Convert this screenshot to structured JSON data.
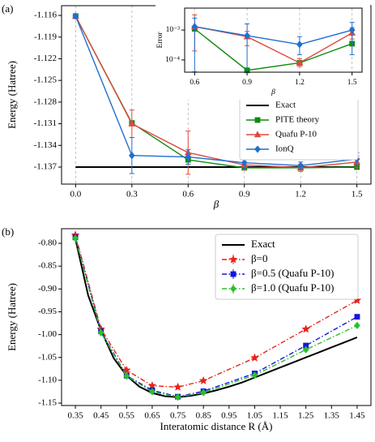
{
  "chart_data": [
    {
      "type": "line",
      "panel_label": "(a)",
      "xlabel": "β",
      "ylabel": "Energy (Hatree)",
      "x": [
        0,
        0.3,
        0.6,
        0.9,
        1.2,
        1.5
      ],
      "xlim": [
        -0.075,
        1.575
      ],
      "ylim": [
        -1.13936,
        -1.11465
      ],
      "xticks": [
        {
          "value": 0,
          "label": "0.0"
        },
        0.3,
        0.6,
        0.9,
        1.2,
        1.5
      ],
      "yticks": [
        -1.116,
        -1.119,
        -1.122,
        -1.125,
        -1.128,
        -1.131,
        -1.134,
        -1.137
      ],
      "grid": "x",
      "legend": "lower right",
      "series": [
        {
          "name": "Exact",
          "color": "#000000",
          "marker": "none",
          "values": [
            -1.137,
            -1.137,
            -1.137,
            -1.137,
            -1.137,
            -1.137
          ]
        },
        {
          "name": "PITE theory",
          "color": "#118a11",
          "marker": "square",
          "values": [
            -1.1161,
            -1.1309,
            -1.136,
            -1.1371,
            -1.1371,
            -1.137
          ]
        },
        {
          "name": "Quafu P-10",
          "color": "#df4a3f",
          "marker": "triangle",
          "values": [
            -1.1161,
            -1.131,
            -1.135,
            -1.1367,
            -1.1371,
            -1.1363
          ],
          "errors": [
            0.0002,
            0.0019,
            0.003,
            0.0007,
            0.0005,
            0.0008
          ]
        },
        {
          "name": "IonQ",
          "color": "#1f6fd0",
          "marker": "diamond",
          "values": [
            -1.1161,
            -1.1354,
            -1.1356,
            -1.1364,
            -1.1368,
            -1.1359
          ],
          "errors": [
            0.0002,
            0.0025,
            0.001,
            0.0009,
            0.0005,
            0.0009
          ]
        }
      ]
    },
    {
      "type": "line",
      "xlabel": "β",
      "ylabel": "Error",
      "ylog": true,
      "x": [
        0.6,
        0.9,
        1.2,
        1.5
      ],
      "xlim": [
        0.543,
        1.557
      ],
      "ylim": [
        3.9e-05,
        0.0054
      ],
      "xticks": [
        0.6,
        0.9,
        1.2,
        1.5
      ],
      "yticks": [
        {
          "value": 0.0001,
          "label": "10⁻⁴"
        },
        {
          "value": 0.001,
          "label": "10⁻³"
        }
      ],
      "grid": "x",
      "series": [
        {
          "color": "#118a11",
          "marker": "square",
          "values": [
            0.0011,
            4.5e-05,
            8e-05,
            0.00035
          ]
        },
        {
          "color": "#df4a3f",
          "marker": "triangle",
          "values": [
            0.0013,
            0.0006,
            8e-05,
            0.0008
          ],
          "lower": [
            0.0002,
            0.0003,
            6e-05,
            0.0005
          ],
          "upper": [
            0.0032,
            0.0009,
            0.00011,
            0.0012
          ]
        },
        {
          "color": "#1f6fd0",
          "marker": "diamond",
          "values": [
            0.0013,
            0.00065,
            0.00033,
            0.001
          ],
          "lower": [
            4e-05,
            4e-05,
            0.00015,
            0.00015
          ],
          "upper": [
            0.0025,
            0.0016,
            0.0006,
            0.0018
          ]
        }
      ]
    },
    {
      "type": "line",
      "panel_label": "(b)",
      "xlabel": "Interatomic distance R (Å)",
      "ylabel": "Energy (Hatree)",
      "xlim": [
        0.296,
        1.504
      ],
      "ylim": [
        -1.1553,
        -0.768
      ],
      "xticks": [
        0.35,
        0.45,
        0.55,
        0.65,
        0.75,
        0.85,
        0.95,
        1.05,
        1.15,
        1.25,
        1.35,
        1.45
      ],
      "yticks": [
        {
          "value": -0.8,
          "label": "-0.80"
        },
        -0.85,
        {
          "value": -0.9,
          "label": "-0.90"
        },
        -0.95,
        {
          "value": -1,
          "label": "-1.00"
        },
        -1.05,
        {
          "value": -1.1,
          "label": "-1.10"
        },
        -1.15
      ],
      "legend": "upper right",
      "series": [
        {
          "name": "Exact",
          "color": "#000000",
          "marker": "none",
          "x": [
            0.35,
            0.4,
            0.45,
            0.5,
            0.55,
            0.6,
            0.65,
            0.7,
            0.75,
            0.8,
            0.85,
            0.9,
            0.95,
            1.0,
            1.05,
            1.1,
            1.15,
            1.2,
            1.25,
            1.3,
            1.35,
            1.4,
            1.45
          ],
          "values": [
            -0.79,
            -0.914,
            -0.991,
            -1.052,
            -1.09,
            -1.114,
            -1.128,
            -1.135,
            -1.137,
            -1.134,
            -1.129,
            -1.122,
            -1.114,
            -1.105,
            -1.094,
            -1.083,
            -1.072,
            -1.061,
            -1.05,
            -1.039,
            -1.028,
            -1.017,
            -1.006
          ]
        },
        {
          "name": "β=0",
          "color": "#e8231b",
          "marker": "star",
          "dash": "dashdot",
          "x": [
            0.35,
            0.45,
            0.55,
            0.65,
            0.75,
            0.85,
            1.05,
            1.25,
            1.45
          ],
          "values": [
            -0.782,
            -0.988,
            -1.078,
            -1.112,
            -1.115,
            -1.101,
            -1.051,
            -0.988,
            -0.925
          ]
        },
        {
          "name": "β=0.5 (Quafu P-10)",
          "color": "#1616d8",
          "marker": "square",
          "dash": "dashdot",
          "x": [
            0.35,
            0.45,
            0.55,
            0.65,
            0.75,
            0.85,
            1.05,
            1.25,
            1.45
          ],
          "values": [
            -0.787,
            -0.993,
            -1.09,
            -1.122,
            -1.136,
            -1.124,
            -1.085,
            -1.024,
            -0.961
          ]
        },
        {
          "name": "β=1.0 (Quafu P-10)",
          "color": "#2bbf2b",
          "marker": "diamond",
          "dash": "dashdot",
          "x": [
            0.35,
            0.45,
            0.55,
            0.65,
            0.75,
            0.85,
            1.05,
            1.25,
            1.45
          ],
          "values": [
            -0.789,
            -0.996,
            -1.091,
            -1.125,
            -1.137,
            -1.127,
            -1.089,
            -1.033,
            -0.98
          ]
        }
      ]
    }
  ]
}
